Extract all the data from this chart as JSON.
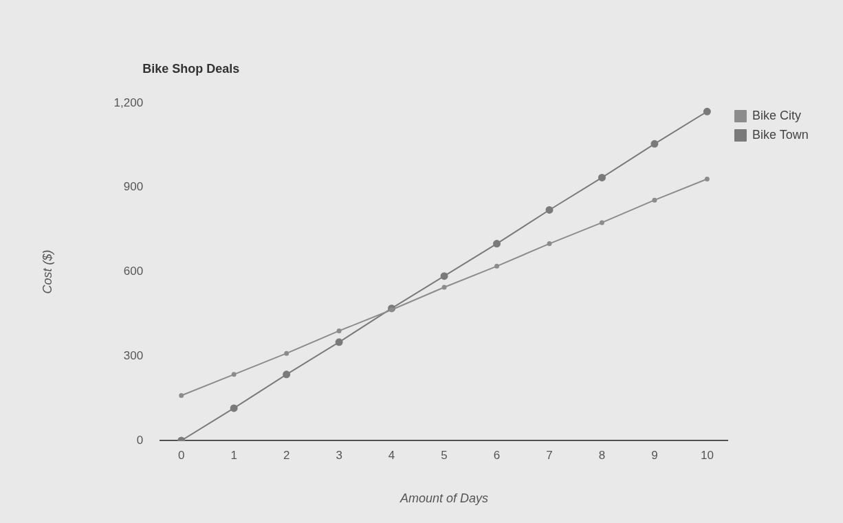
{
  "chart_data": {
    "type": "line",
    "title": "Bike Shop Deals",
    "xlabel": "Amount of Days",
    "ylabel": "Cost ($)",
    "x": [
      0,
      1,
      2,
      3,
      4,
      5,
      6,
      7,
      8,
      9,
      10
    ],
    "series": [
      {
        "name": "Bike City",
        "color": "#8c8c8c",
        "values": [
          160,
          235,
          310,
          390,
          465,
          545,
          620,
          700,
          775,
          855,
          930
        ]
      },
      {
        "name": "Bike Town",
        "color": "#7a7a7a",
        "values": [
          0,
          115,
          235,
          350,
          470,
          585,
          700,
          820,
          935,
          1055,
          1170
        ]
      }
    ],
    "xlim": [
      -0.4,
      10.4
    ],
    "xticks": [
      0,
      1,
      2,
      3,
      4,
      5,
      6,
      7,
      8,
      9,
      10
    ],
    "ylim": [
      0,
      1200
    ],
    "yticks": [
      0,
      300,
      600,
      900,
      {
        "value": 1200,
        "label": "1,200"
      }
    ],
    "grid": false,
    "legend": "top right",
    "marker": "circle",
    "line_style": "solid"
  }
}
